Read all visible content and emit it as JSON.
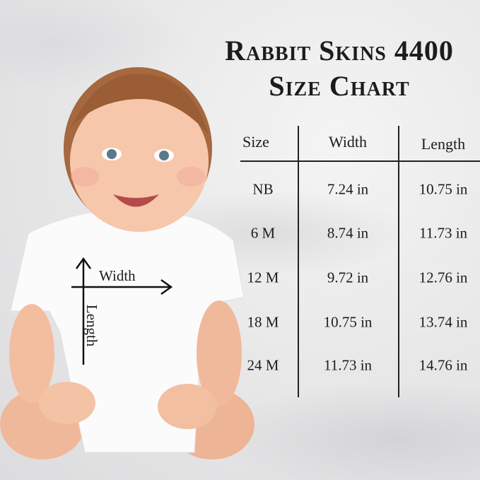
{
  "title": {
    "line1": "Rabbit Skins 4400",
    "line2": "Size Chart"
  },
  "table": {
    "headers": [
      "Size",
      "Width",
      "Length"
    ],
    "rows": [
      [
        "NB",
        "7.24 in",
        "10.75 in"
      ],
      [
        "6 M",
        "8.74 in",
        "11.73 in"
      ],
      [
        "12 M",
        "9.72 in",
        "12.76 in"
      ],
      [
        "18 M",
        "10.75 in",
        "13.74 in"
      ],
      [
        "24 M",
        "11.73 in",
        "14.76 in"
      ]
    ]
  },
  "diagram": {
    "width_label": "Width",
    "length_label": "Length"
  },
  "chart_data": {
    "type": "table",
    "columns": [
      "Size",
      "Width",
      "Length"
    ],
    "rows": [
      [
        "NB",
        "7.24 in",
        "10.75 in"
      ],
      [
        "6 M",
        "8.74 in",
        "11.73 in"
      ],
      [
        "12 M",
        "9.72 in",
        "12.76 in"
      ],
      [
        "18 M",
        "10.75 in",
        "13.74 in"
      ],
      [
        "24 M",
        "11.73 in",
        "14.76 in"
      ]
    ]
  }
}
